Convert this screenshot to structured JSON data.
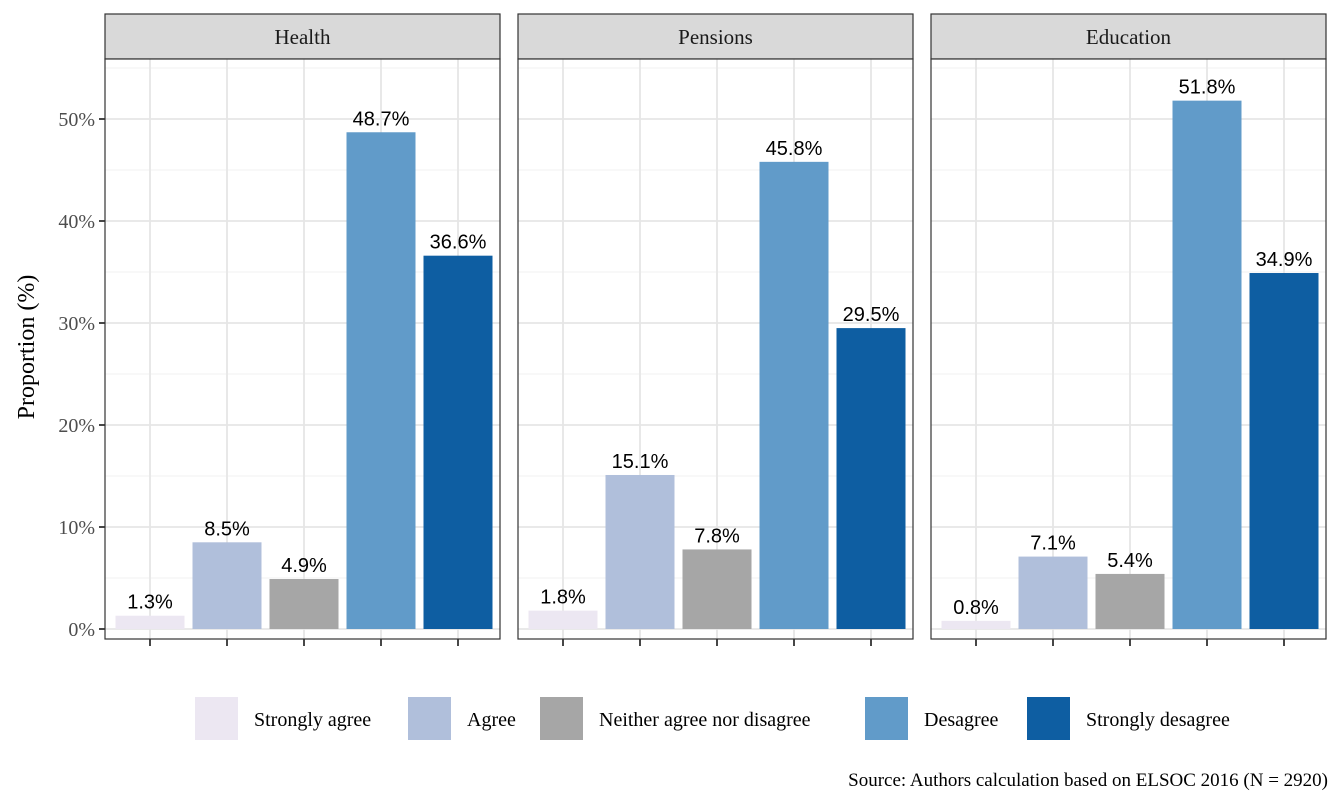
{
  "chart_data": {
    "type": "bar",
    "ylabel": "Proportion (%)",
    "ylim": [
      0,
      55
    ],
    "yticks": [
      0,
      10,
      20,
      30,
      40,
      50
    ],
    "ytick_labels": [
      "0%",
      "10%",
      "20%",
      "30%",
      "40%",
      "50%"
    ],
    "grid": true,
    "legend_position": "bottom",
    "categories": [
      "Strongly agree",
      "Agree",
      "Neither agree nor disagree",
      "Desagree",
      "Strongly desagree"
    ],
    "colors": [
      "#ECE7F2",
      "#B0BFDB",
      "#A6A6A6",
      "#619BC9",
      "#0E5EA2"
    ],
    "panels": [
      {
        "title": "Health",
        "values": [
          1.3,
          8.5,
          4.9,
          48.7,
          36.6
        ],
        "labels": [
          "1.3%",
          "8.5%",
          "4.9%",
          "48.7%",
          "36.6%"
        ]
      },
      {
        "title": "Pensions",
        "values": [
          1.8,
          15.1,
          7.8,
          45.8,
          29.5
        ],
        "labels": [
          "1.8%",
          "15.1%",
          "7.8%",
          "45.8%",
          "29.5%"
        ]
      },
      {
        "title": "Education",
        "values": [
          0.8,
          7.1,
          5.4,
          51.8,
          34.9
        ],
        "labels": [
          "0.8%",
          "7.1%",
          "5.4%",
          "51.8%",
          "34.9%"
        ]
      }
    ],
    "caption": "Source: Authors calculation based on ELSOC 2016 (N = 2920)"
  }
}
